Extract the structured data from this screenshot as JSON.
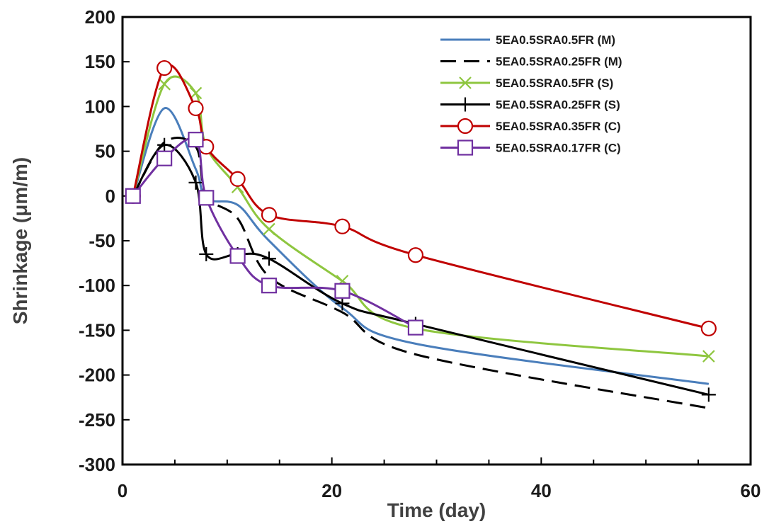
{
  "chart_data": {
    "type": "line",
    "xlabel": "Time (day)",
    "ylabel": "Shrinkage (μm/m)",
    "xlim": [
      0,
      60
    ],
    "ylim": [
      -300,
      200
    ],
    "xticks": [
      0,
      20,
      40,
      60
    ],
    "yticks": [
      -300,
      -250,
      -200,
      -150,
      -100,
      -50,
      0,
      50,
      100,
      150,
      200
    ],
    "grid": false,
    "legend_position": "top-right",
    "series": [
      {
        "name": "5EA0.5SRA0.5FR (M)",
        "color": "#4a7ebb",
        "dash": "solid",
        "marker": "none",
        "x": [
          1,
          4,
          7,
          8,
          11,
          14,
          21,
          28,
          56
        ],
        "y": [
          0,
          98,
          30,
          -3,
          -10,
          -50,
          -125,
          -165,
          -210
        ]
      },
      {
        "name": "5EA0.5SRA0.25FR (M)",
        "color": "#000000",
        "dash": "dashed",
        "marker": "none",
        "x": [
          1,
          4,
          7,
          8,
          11,
          14,
          21,
          28,
          56
        ],
        "y": [
          0,
          60,
          55,
          0,
          -25,
          -90,
          -130,
          -177,
          -237
        ]
      },
      {
        "name": "5EA0.5SRA0.5FR (S)",
        "color": "#8ec63f",
        "dash": "solid",
        "marker": "x",
        "x": [
          1,
          4,
          7,
          8,
          11,
          14,
          21,
          28,
          56
        ],
        "y": [
          0,
          125,
          115,
          55,
          10,
          -37,
          -95,
          -148,
          -179
        ]
      },
      {
        "name": "5EA0.5SRA0.25FR (S)",
        "color": "#000000",
        "dash": "solid",
        "marker": "plus",
        "x": [
          1,
          4,
          7,
          8,
          11,
          14,
          21,
          28,
          56
        ],
        "y": [
          0,
          57,
          15,
          -65,
          -65,
          -70,
          -120,
          -143,
          -222
        ]
      },
      {
        "name": "5EA0.5SRA0.35FR (C)",
        "color": "#c00000",
        "dash": "solid",
        "marker": "circle",
        "x": [
          1,
          4,
          7,
          8,
          11,
          14,
          21,
          28,
          56
        ],
        "y": [
          0,
          143,
          98,
          55,
          19,
          -21,
          -34,
          -66,
          -148
        ]
      },
      {
        "name": "5EA0.5SRA0.17FR (C)",
        "color": "#7030a0",
        "dash": "solid",
        "marker": "square",
        "x": [
          1,
          4,
          7,
          8,
          11,
          14,
          21,
          28
        ],
        "y": [
          0,
          42,
          63,
          -2,
          -67,
          -100,
          -106,
          -147
        ]
      }
    ]
  }
}
